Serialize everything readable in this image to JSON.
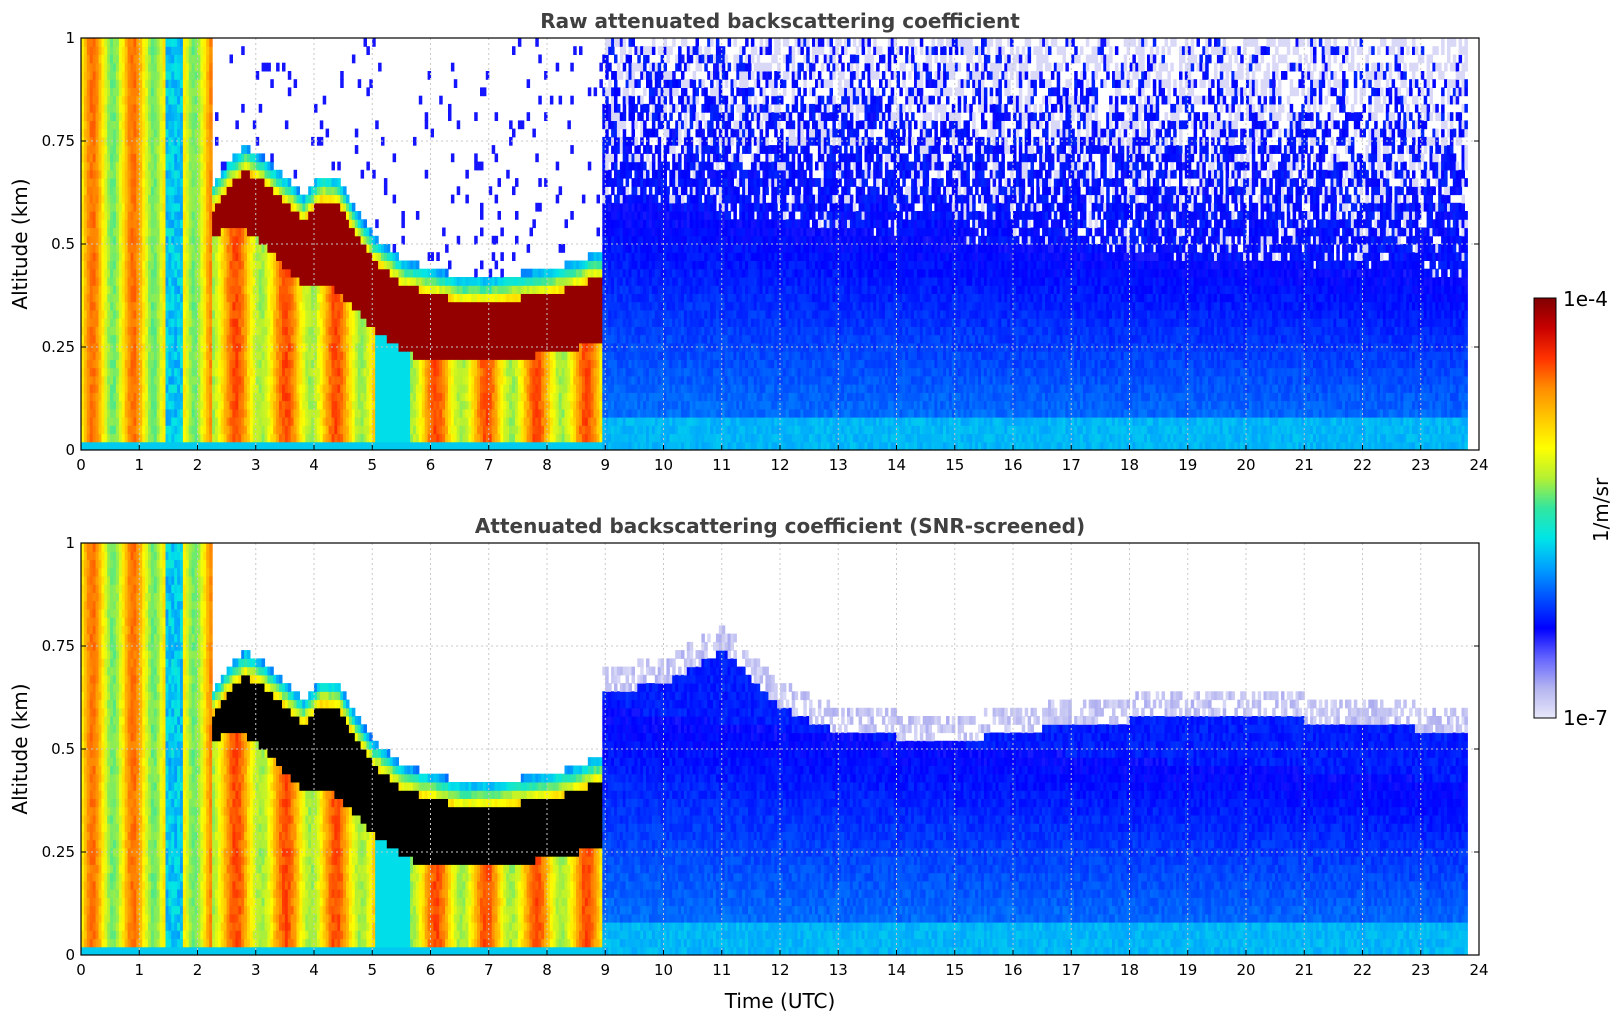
{
  "chart_data": [
    {
      "type": "heatmap",
      "title": "Raw attenuated backscattering coefficient",
      "xlabel": "",
      "ylabel": "Altitude (km)",
      "xlim": [
        0,
        24
      ],
      "ylim": [
        0,
        1
      ],
      "x_ticks": [
        "0",
        "1",
        "2",
        "3",
        "4",
        "5",
        "6",
        "7",
        "8",
        "9",
        "10",
        "11",
        "12",
        "13",
        "14",
        "15",
        "16",
        "17",
        "18",
        "19",
        "20",
        "21",
        "22",
        "23",
        "24"
      ],
      "y_ticks": [
        "0",
        "0.25",
        "0.5",
        "0.75",
        "1"
      ],
      "grid": true,
      "data_end_hour": 23.8,
      "cloud_layer": {
        "hours": [
          2.2,
          2.5,
          2.8,
          3.1,
          3.5,
          3.8,
          4.1,
          4.4,
          4.7,
          5.0,
          5.5,
          6.0,
          6.5,
          7.0,
          7.5,
          8.0,
          8.5,
          8.8
        ],
        "top_km": [
          0.6,
          0.66,
          0.7,
          0.67,
          0.62,
          0.58,
          0.63,
          0.62,
          0.54,
          0.48,
          0.42,
          0.4,
          0.38,
          0.38,
          0.39,
          0.4,
          0.42,
          0.44
        ],
        "base_km": [
          0.52,
          0.54,
          0.53,
          0.5,
          0.44,
          0.4,
          0.41,
          0.38,
          0.34,
          0.29,
          0.24,
          0.21,
          0.21,
          0.22,
          0.22,
          0.24,
          0.25,
          0.26
        ]
      },
      "boundary_layer_top_km": {
        "hours": [
          9,
          12,
          16,
          19.5,
          21,
          23.8
        ],
        "values": [
          0.6,
          0.55,
          0.5,
          0.46,
          0.45,
          0.42
        ]
      },
      "screened": false
    },
    {
      "type": "heatmap",
      "title": "Attenuated backscattering coefficient (SNR-screened)",
      "xlabel": "Time (UTC)",
      "ylabel": "Altitude (km)",
      "xlim": [
        0,
        24
      ],
      "ylim": [
        0,
        1
      ],
      "x_ticks": [
        "0",
        "1",
        "2",
        "3",
        "4",
        "5",
        "6",
        "7",
        "8",
        "9",
        "10",
        "11",
        "12",
        "13",
        "14",
        "15",
        "16",
        "17",
        "18",
        "19",
        "20",
        "21",
        "22",
        "23",
        "24"
      ],
      "y_ticks": [
        "0",
        "0.25",
        "0.5",
        "0.75",
        "1"
      ],
      "grid": true,
      "data_end_hour": 23.8,
      "screened": true,
      "signal_top_km": {
        "hours": [
          9,
          10,
          11,
          12,
          13,
          15,
          17,
          19,
          21,
          23.8
        ],
        "values": [
          0.7,
          0.72,
          0.8,
          0.66,
          0.6,
          0.58,
          0.62,
          0.64,
          0.63,
          0.6
        ]
      }
    }
  ],
  "colorbar": {
    "max_label": "1e-4",
    "min_label": "1e-7",
    "unit_label": "1/m/sr",
    "scale": "log",
    "range": [
      1e-07,
      0.0001
    ],
    "colors": [
      "#e8e8fa",
      "#b4b4f0",
      "#6464ff",
      "#0000ff",
      "#0050ff",
      "#00a0ff",
      "#00e6e6",
      "#32e6a0",
      "#b4f032",
      "#ffff00",
      "#ffc800",
      "#ff8c00",
      "#ff3200",
      "#c80000",
      "#800000"
    ]
  }
}
